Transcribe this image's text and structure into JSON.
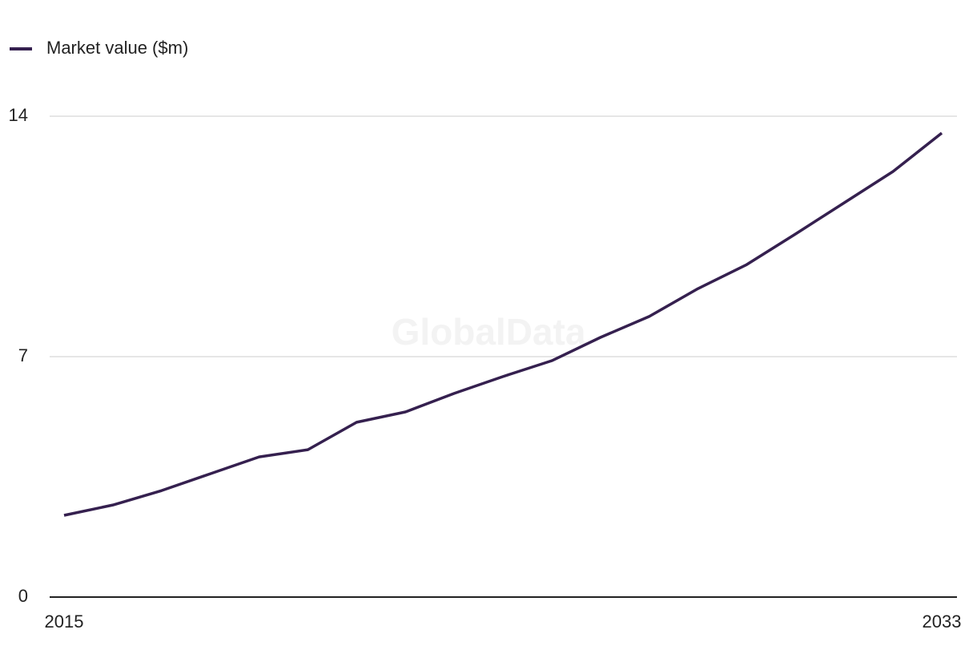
{
  "chart_data": {
    "type": "line",
    "watermark": "GlobalData",
    "x": [
      2015,
      2016,
      2017,
      2018,
      2019,
      2020,
      2021,
      2022,
      2023,
      2024,
      2025,
      2026,
      2027,
      2028,
      2029,
      2030,
      2031,
      2032,
      2033
    ],
    "series": [
      {
        "name": "Market value ($m)",
        "color": "#35204f",
        "values": [
          2.38,
          2.68,
          3.1,
          3.59,
          4.08,
          4.29,
          5.09,
          5.39,
          5.93,
          6.42,
          6.88,
          7.56,
          8.17,
          8.98,
          9.68,
          10.57,
          11.48,
          12.39,
          13.51
        ]
      }
    ],
    "xlim": [
      2015,
      2033
    ],
    "xticks": [
      2015,
      2033
    ],
    "ylim": [
      0,
      14
    ],
    "yticks": [
      0,
      7,
      14
    ],
    "grid": true,
    "legend": "top-left"
  }
}
